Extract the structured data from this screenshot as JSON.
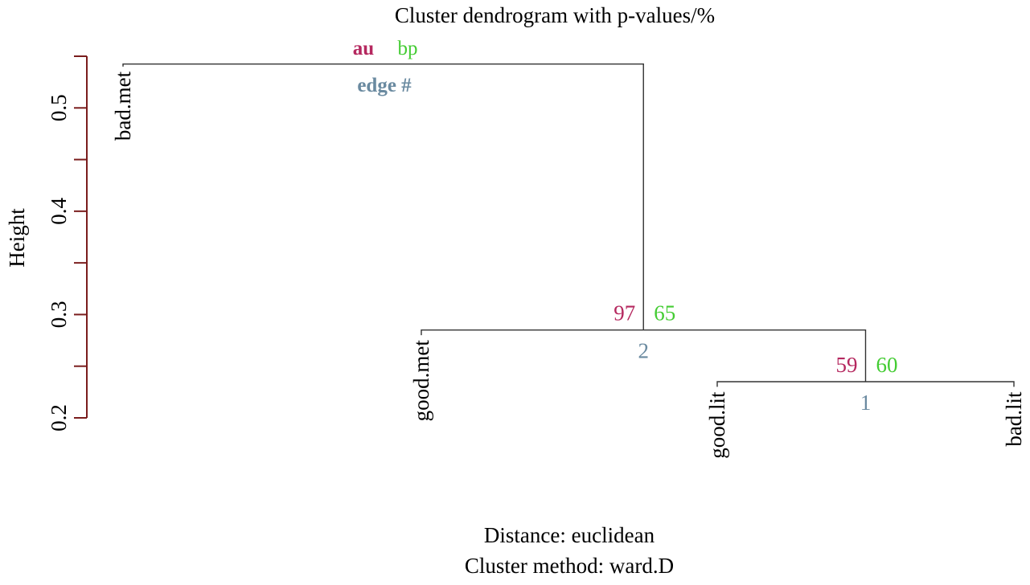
{
  "chart_data": {
    "type": "dendrogram",
    "title": "Cluster dendrogram with p-values/%",
    "ylabel": "Height",
    "xlabel": "Distance: euclidean",
    "sublabel": "Cluster method: ward.D",
    "ylim": [
      0.2,
      0.55
    ],
    "yticks": [
      0.2,
      0.3,
      0.4,
      0.5
    ],
    "legend": {
      "au": "au",
      "bp": "bp",
      "edge": "edge #"
    },
    "leaves": [
      {
        "label": "bad.met",
        "height": 0.54
      },
      {
        "label": "good.met",
        "height": 0.28
      },
      {
        "label": "good.lit",
        "height": 0.23
      },
      {
        "label": "bad.lit",
        "height": 0.23
      }
    ],
    "merges": [
      {
        "edge": "1",
        "height": 0.235,
        "left": "leaf:2",
        "right": "leaf:3",
        "au": "59",
        "bp": "60"
      },
      {
        "edge": "2",
        "height": 0.285,
        "left": "leaf:1",
        "right": "merge:0",
        "au": "97",
        "bp": "65"
      },
      {
        "edge": "",
        "height": 0.5425,
        "left": "leaf:0",
        "right": "merge:1",
        "au": "",
        "bp": ""
      }
    ],
    "colors": {
      "au": "#b5285f",
      "bp": "#44cc33",
      "edge": "#6a8aa0",
      "axis": "#7a1d1d",
      "branch": "#333333",
      "text": "#000000"
    }
  }
}
